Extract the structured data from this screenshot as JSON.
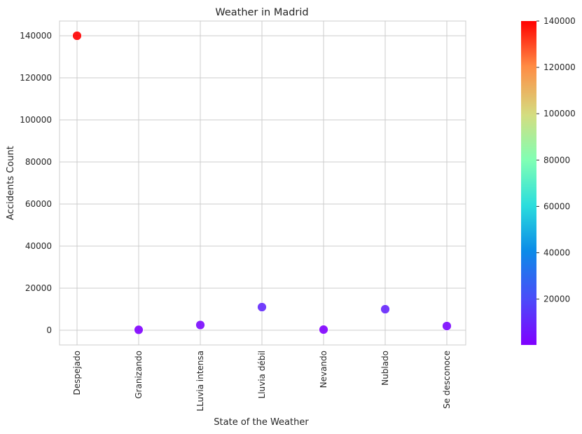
{
  "chart_data": {
    "type": "scatter",
    "title": "Weather in Madrid",
    "xlabel": "State of the Weather",
    "ylabel": "Accidents Count",
    "categories": [
      "Despejado",
      "Granizando",
      "LLuvia intensa",
      "Lluvia débil",
      "Nevando",
      "Nublado",
      "Se desconoce"
    ],
    "values": [
      140000,
      200,
      2500,
      11000,
      300,
      10000,
      2000
    ],
    "ylim": [
      -7000,
      147000
    ],
    "yticks": [
      0,
      20000,
      40000,
      60000,
      80000,
      100000,
      120000,
      140000
    ],
    "grid": true,
    "colormap": "rainbow",
    "colorbar": {
      "range": [
        200,
        140000
      ],
      "ticks": [
        20000,
        40000,
        60000,
        80000,
        100000,
        120000,
        140000
      ]
    }
  }
}
